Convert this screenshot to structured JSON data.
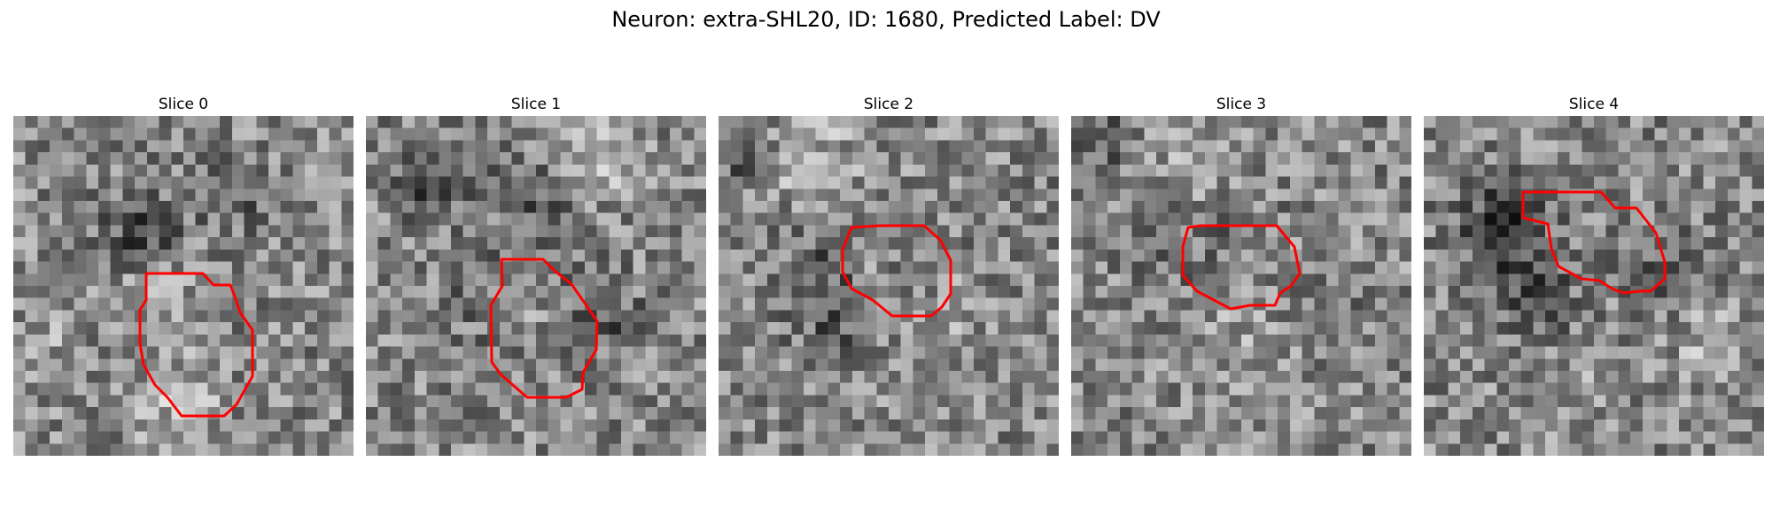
{
  "title": "Neuron: extra-SHL20, ID: 1680, Predicted Label: DV",
  "contour_color": "#ff0000",
  "panels": [
    {
      "label": "Slice 0"
    },
    {
      "label": "Slice 1"
    },
    {
      "label": "Slice 2"
    },
    {
      "label": "Slice 3"
    },
    {
      "label": "Slice 4"
    }
  ]
}
